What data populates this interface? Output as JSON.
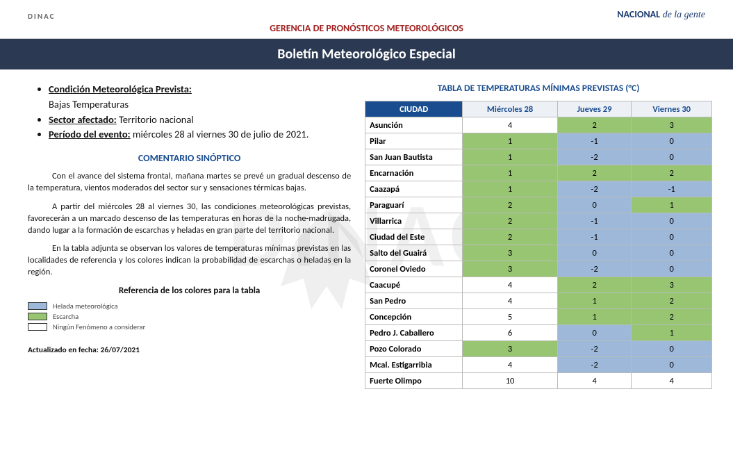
{
  "header": {
    "left_logo": "DINAC",
    "right_logo_bold": "NACIONAL",
    "right_logo_script": "de la gente",
    "sub": "GERENCIA DE PRONÓSTICOS METEOROLÓGICOS",
    "title": "Boletín Meteorológico Especial"
  },
  "bullets": {
    "b1_label": "Condición Meteorológica Prevista:",
    "b1_val": "Bajas Temperaturas",
    "b2_label": "Sector afectado:",
    "b2_val": " Territorio nacional",
    "b3_label": "Período del evento:",
    "b3_val": " miércoles 28 al viernes 30 de julio de 2021."
  },
  "comentario": {
    "heading": "COMENTARIO SINÓPTICO",
    "p1": "Con el avance del sistema frontal, mañana martes se prevé un gradual descenso de la temperatura, vientos moderados del sector sur y sensaciones térmicas bajas.",
    "p2": "A partir del miércoles 28 al viernes 30, las condiciones meteorológicas previstas, favorecerán a un marcado descenso de las temperaturas en horas de la noche-madrugada, dando lugar a la formación de escarchas y heladas en gran parte del territorio nacional.",
    "p3": "En la tabla adjunta se observan los valores de temperaturas mínimas previstas en las localidades de referencia y los colores indican la probabilidad de escarchas o heladas en la región."
  },
  "legend": {
    "heading": "Referencia de los colores para la tabla",
    "items": [
      {
        "color": "#9db8d8",
        "label": "Helada meteorológica"
      },
      {
        "color": "#97c572",
        "label": "Escarcha"
      },
      {
        "color": "#ffffff",
        "label": "Ningún Fenómeno a considerar"
      }
    ]
  },
  "footer": {
    "date_label": "Actualizado en fecha: 26/07/2021"
  },
  "table": {
    "title": "TABLA DE TEMPERATURAS MÍNIMAS PREVISTAS (°C)",
    "col_city": "CIUDAD",
    "days": [
      "Miércoles 28",
      "Jueves 29",
      "Viernes 30"
    ],
    "colors": {
      "helada": "#9db8d8",
      "escarcha": "#97c572",
      "none": "#ffffff"
    },
    "rows": [
      {
        "city": "Asunción",
        "vals": [
          {
            "v": "4",
            "c": "none"
          },
          {
            "v": "2",
            "c": "escarcha"
          },
          {
            "v": "3",
            "c": "escarcha"
          }
        ]
      },
      {
        "city": "Pilar",
        "vals": [
          {
            "v": "1",
            "c": "escarcha"
          },
          {
            "v": "-1",
            "c": "helada"
          },
          {
            "v": "0",
            "c": "helada"
          }
        ]
      },
      {
        "city": "San Juan Bautista",
        "vals": [
          {
            "v": "1",
            "c": "escarcha"
          },
          {
            "v": "-2",
            "c": "helada"
          },
          {
            "v": "0",
            "c": "helada"
          }
        ]
      },
      {
        "city": "Encarnación",
        "vals": [
          {
            "v": "1",
            "c": "escarcha"
          },
          {
            "v": "2",
            "c": "escarcha"
          },
          {
            "v": "2",
            "c": "escarcha"
          }
        ]
      },
      {
        "city": "Caazapá",
        "vals": [
          {
            "v": "1",
            "c": "escarcha"
          },
          {
            "v": "-2",
            "c": "helada"
          },
          {
            "v": "-1",
            "c": "helada"
          }
        ]
      },
      {
        "city": "Paraguarí",
        "vals": [
          {
            "v": "2",
            "c": "escarcha"
          },
          {
            "v": "0",
            "c": "helada"
          },
          {
            "v": "1",
            "c": "escarcha"
          }
        ]
      },
      {
        "city": "Villarrica",
        "vals": [
          {
            "v": "2",
            "c": "escarcha"
          },
          {
            "v": "-1",
            "c": "helada"
          },
          {
            "v": "0",
            "c": "helada"
          }
        ]
      },
      {
        "city": "Ciudad del Este",
        "vals": [
          {
            "v": "2",
            "c": "escarcha"
          },
          {
            "v": "-1",
            "c": "helada"
          },
          {
            "v": "0",
            "c": "helada"
          }
        ]
      },
      {
        "city": "Salto del Guairá",
        "vals": [
          {
            "v": "3",
            "c": "escarcha"
          },
          {
            "v": "0",
            "c": "helada"
          },
          {
            "v": "0",
            "c": "helada"
          }
        ]
      },
      {
        "city": "Coronel Oviedo",
        "vals": [
          {
            "v": "3",
            "c": "escarcha"
          },
          {
            "v": "-2",
            "c": "helada"
          },
          {
            "v": "0",
            "c": "helada"
          }
        ]
      },
      {
        "city": "Caacupé",
        "vals": [
          {
            "v": "4",
            "c": "none"
          },
          {
            "v": "2",
            "c": "escarcha"
          },
          {
            "v": "3",
            "c": "escarcha"
          }
        ]
      },
      {
        "city": "San Pedro",
        "vals": [
          {
            "v": "4",
            "c": "none"
          },
          {
            "v": "1",
            "c": "escarcha"
          },
          {
            "v": "2",
            "c": "escarcha"
          }
        ]
      },
      {
        "city": "Concepción",
        "vals": [
          {
            "v": "5",
            "c": "none"
          },
          {
            "v": "1",
            "c": "escarcha"
          },
          {
            "v": "2",
            "c": "escarcha"
          }
        ]
      },
      {
        "city": "Pedro J. Caballero",
        "vals": [
          {
            "v": "6",
            "c": "none"
          },
          {
            "v": "0",
            "c": "helada"
          },
          {
            "v": "1",
            "c": "escarcha"
          }
        ]
      },
      {
        "city": "Pozo Colorado",
        "vals": [
          {
            "v": "3",
            "c": "escarcha"
          },
          {
            "v": "-2",
            "c": "helada"
          },
          {
            "v": "0",
            "c": "helada"
          }
        ]
      },
      {
        "city": "Mcal. Estigarribia",
        "vals": [
          {
            "v": "4",
            "c": "none"
          },
          {
            "v": "-2",
            "c": "helada"
          },
          {
            "v": "0",
            "c": "helada"
          }
        ]
      },
      {
        "city": "Fuerte Olimpo",
        "vals": [
          {
            "v": "10",
            "c": "none"
          },
          {
            "v": "4",
            "c": "none"
          },
          {
            "v": "4",
            "c": "none"
          }
        ]
      }
    ]
  },
  "watermark_text": "DINAC"
}
